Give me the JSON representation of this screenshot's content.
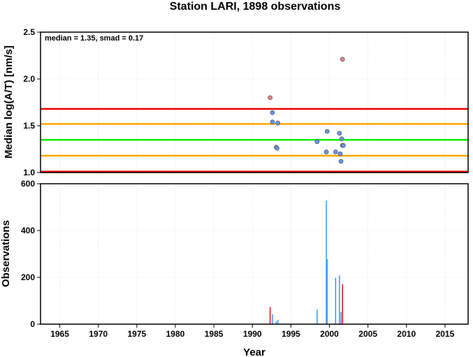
{
  "chart_data": [
    {
      "type": "scatter",
      "title": "Station LARI, 1898 observations",
      "annotation": "median = 1.35, smad = 0.17",
      "ylabel": "Median log(A/T) [nm/s]",
      "xlim": [
        1962.5,
        2018
      ],
      "ylim": [
        1.0,
        2.5
      ],
      "yticks": [
        "1.0",
        "1.5",
        "2.0",
        "2.5"
      ],
      "grid": true,
      "reference_lines": [
        {
          "value": 1.35,
          "color": "#00ee00"
        },
        {
          "value": 1.52,
          "color": "#ffa500"
        },
        {
          "value": 1.18,
          "color": "#ffa500"
        },
        {
          "value": 1.68,
          "color": "#ee0000"
        },
        {
          "value": 1.01,
          "color": "#ee0000"
        }
      ],
      "series": [
        {
          "color": "#6495ed",
          "x": [
            1992.6,
            1992.6,
            1993.1,
            1993.2,
            1993.3,
            1998.4,
            1999.6,
            1999.7,
            2000.8,
            2001.3,
            2001.4,
            2001.5,
            2001.6,
            2001.7,
            2001.8
          ],
          "y": [
            1.64,
            1.54,
            1.27,
            1.26,
            1.53,
            1.33,
            1.22,
            1.44,
            1.22,
            1.42,
            1.2,
            1.12,
            1.36,
            1.29,
            1.29
          ]
        },
        {
          "color": "#f08080",
          "x": [
            1992.3,
            2001.7
          ],
          "y": [
            1.8,
            2.21
          ]
        }
      ]
    },
    {
      "type": "bar",
      "xlabel": "Year",
      "ylabel": "Observations",
      "xlim": [
        1962.5,
        2018
      ],
      "ylim": [
        0,
        600
      ],
      "xticks": [
        "1965",
        "1970",
        "1975",
        "1980",
        "1985",
        "1990",
        "1995",
        "2000",
        "2005",
        "2010",
        "2015"
      ],
      "yticks": [
        "0",
        "200",
        "400",
        "600"
      ],
      "grid": true,
      "series": [
        {
          "color": "#3399ff",
          "x": [
            1992.6,
            1993.1,
            1993.3,
            1998.4,
            1999.6,
            1999.7,
            2000.8,
            2001.3,
            2001.5
          ],
          "values": [
            42,
            12,
            18,
            62,
            528,
            278,
            198,
            208,
            52
          ]
        },
        {
          "color": "#dd1111",
          "x": [
            1992.3,
            2001.7
          ],
          "values": [
            73,
            170
          ]
        }
      ]
    }
  ]
}
